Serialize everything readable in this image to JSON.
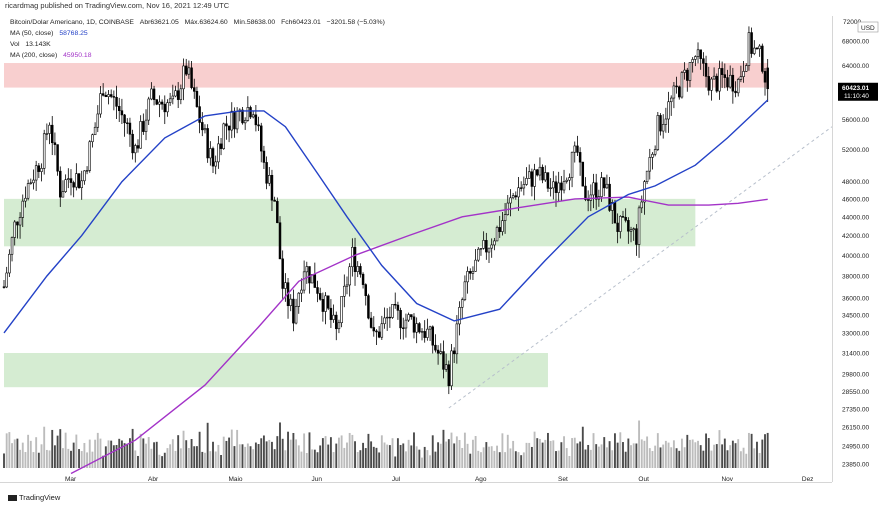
{
  "header": {
    "published": "ricardmag published on TradingView.com, Nov 16, 2021 12:49 UTC"
  },
  "ohlc": {
    "symbol": "Bitcoin/Dolar Americano, 1D, COINBASE",
    "open_label": "Abr",
    "open": "63621.05",
    "high_label": "Máx.",
    "high": "63624.60",
    "low_label": "Mín.",
    "low": "58638.00",
    "close_label": "Fch",
    "close": "60423.01",
    "change": "−3201.58 (−5.03%)"
  },
  "indicators": [
    {
      "label": "MA (50, close)",
      "value": "58768.25",
      "color": "#2442c7"
    },
    {
      "label": "Vol",
      "value": "13.143K",
      "color": "#222222"
    },
    {
      "label": "MA (200, close)",
      "value": "45950.18",
      "color": "#a333c8"
    }
  ],
  "brand": "TradingView",
  "chart_data": {
    "type": "candlestick",
    "currency": "USD",
    "yscale": "log",
    "ylim": [
      23500,
      72000
    ],
    "price_ticks": [
      "68000.00",
      "64000.00",
      "60000.00",
      "56000.00",
      "52000.00",
      "48000.00",
      "46000.00",
      "44000.00",
      "42000.00",
      "40000.00",
      "38000.00",
      "36000.00",
      "34500.00",
      "33000.00",
      "31400.00",
      "29800.00",
      "28550.00",
      "27350.00",
      "26150.00",
      "24950.00",
      "23850.00"
    ],
    "top_tick_partial": "72000",
    "months": [
      {
        "label": "Mar",
        "date": "2021-03-01"
      },
      {
        "label": "Abr",
        "date": "2021-04-01"
      },
      {
        "label": "Maio",
        "date": "2021-05-01"
      },
      {
        "label": "Jun",
        "date": "2021-06-01"
      },
      {
        "label": "Jul",
        "date": "2021-07-01"
      },
      {
        "label": "Ago",
        "date": "2021-08-01"
      },
      {
        "label": "Set",
        "date": "2021-09-01"
      },
      {
        "label": "Out",
        "date": "2021-10-01"
      },
      {
        "label": "Nov",
        "date": "2021-11-01"
      },
      {
        "label": "Dez",
        "date": "2021-12-01"
      }
    ],
    "x_range": [
      "2021-02-04",
      "2021-12-10"
    ],
    "last_bar_date": "2021-11-16",
    "close_trajectory": [
      {
        "date": "2021-02-04",
        "close": 37000
      },
      {
        "date": "2021-02-08",
        "close": 43000
      },
      {
        "date": "2021-02-12",
        "close": 47000
      },
      {
        "date": "2021-02-18",
        "close": 51000
      },
      {
        "date": "2021-02-21",
        "close": 56000
      },
      {
        "date": "2021-02-25",
        "close": 47000
      },
      {
        "date": "2021-03-01",
        "close": 49000
      },
      {
        "date": "2021-03-05",
        "close": 48000
      },
      {
        "date": "2021-03-10",
        "close": 55000
      },
      {
        "date": "2021-03-13",
        "close": 61000
      },
      {
        "date": "2021-03-18",
        "close": 58000
      },
      {
        "date": "2021-03-22",
        "close": 55000
      },
      {
        "date": "2021-03-25",
        "close": 52000
      },
      {
        "date": "2021-03-31",
        "close": 59000
      },
      {
        "date": "2021-04-08",
        "close": 58000
      },
      {
        "date": "2021-04-13",
        "close": 63500
      },
      {
        "date": "2021-04-18",
        "close": 56000
      },
      {
        "date": "2021-04-23",
        "close": 50000
      },
      {
        "date": "2021-04-27",
        "close": 55000
      },
      {
        "date": "2021-05-03",
        "close": 57000
      },
      {
        "date": "2021-05-08",
        "close": 58000
      },
      {
        "date": "2021-05-12",
        "close": 50000
      },
      {
        "date": "2021-05-16",
        "close": 46000
      },
      {
        "date": "2021-05-19",
        "close": 37000
      },
      {
        "date": "2021-05-23",
        "close": 34500
      },
      {
        "date": "2021-05-27",
        "close": 39000
      },
      {
        "date": "2021-06-01",
        "close": 37000
      },
      {
        "date": "2021-06-08",
        "close": 33000
      },
      {
        "date": "2021-06-14",
        "close": 40000
      },
      {
        "date": "2021-06-18",
        "close": 38000
      },
      {
        "date": "2021-06-22",
        "close": 32500
      },
      {
        "date": "2021-06-28",
        "close": 34500
      },
      {
        "date": "2021-07-06",
        "close": 34000
      },
      {
        "date": "2021-07-12",
        "close": 33000
      },
      {
        "date": "2021-07-20",
        "close": 29800
      },
      {
        "date": "2021-07-26",
        "close": 37000
      },
      {
        "date": "2021-08-01",
        "close": 40000
      },
      {
        "date": "2021-08-08",
        "close": 43000
      },
      {
        "date": "2021-08-14",
        "close": 47000
      },
      {
        "date": "2021-08-22",
        "close": 49000
      },
      {
        "date": "2021-08-28",
        "close": 47000
      },
      {
        "date": "2021-09-06",
        "close": 51500
      },
      {
        "date": "2021-09-08",
        "close": 46500
      },
      {
        "date": "2021-09-16",
        "close": 47500
      },
      {
        "date": "2021-09-21",
        "close": 43000
      },
      {
        "date": "2021-09-28",
        "close": 42000
      },
      {
        "date": "2021-10-01",
        "close": 48000
      },
      {
        "date": "2021-10-06",
        "close": 55000
      },
      {
        "date": "2021-10-15",
        "close": 61500
      },
      {
        "date": "2021-10-20",
        "close": 65500
      },
      {
        "date": "2021-10-26",
        "close": 61000
      },
      {
        "date": "2021-10-30",
        "close": 62000
      },
      {
        "date": "2021-11-05",
        "close": 61500
      },
      {
        "date": "2021-11-09",
        "close": 67500
      },
      {
        "date": "2021-11-14",
        "close": 64800
      },
      {
        "date": "2021-11-16",
        "close": 60423
      }
    ],
    "ma50": [
      {
        "date": "2021-02-04",
        "v": 33000
      },
      {
        "date": "2021-02-20",
        "v": 38000
      },
      {
        "date": "2021-03-05",
        "v": 42000
      },
      {
        "date": "2021-03-20",
        "v": 48000
      },
      {
        "date": "2021-04-05",
        "v": 53500
      },
      {
        "date": "2021-04-20",
        "v": 56500
      },
      {
        "date": "2021-05-03",
        "v": 57200
      },
      {
        "date": "2021-05-12",
        "v": 57200
      },
      {
        "date": "2021-05-20",
        "v": 55000
      },
      {
        "date": "2021-06-01",
        "v": 49000
      },
      {
        "date": "2021-06-12",
        "v": 44000
      },
      {
        "date": "2021-06-25",
        "v": 39000
      },
      {
        "date": "2021-07-08",
        "v": 35500
      },
      {
        "date": "2021-07-22",
        "v": 34000
      },
      {
        "date": "2021-08-08",
        "v": 35000
      },
      {
        "date": "2021-08-25",
        "v": 39500
      },
      {
        "date": "2021-09-10",
        "v": 44000
      },
      {
        "date": "2021-09-25",
        "v": 46500
      },
      {
        "date": "2021-10-05",
        "v": 47500
      },
      {
        "date": "2021-10-20",
        "v": 50000
      },
      {
        "date": "2021-11-01",
        "v": 53500
      },
      {
        "date": "2021-11-16",
        "v": 58768
      }
    ],
    "ma200": [
      {
        "date": "2021-03-01",
        "v": 23300
      },
      {
        "date": "2021-03-25",
        "v": 25300
      },
      {
        "date": "2021-04-20",
        "v": 29000
      },
      {
        "date": "2021-05-10",
        "v": 33500
      },
      {
        "date": "2021-05-25",
        "v": 37500
      },
      {
        "date": "2021-06-15",
        "v": 40000
      },
      {
        "date": "2021-07-05",
        "v": 42000
      },
      {
        "date": "2021-07-25",
        "v": 44000
      },
      {
        "date": "2021-08-15",
        "v": 45000
      },
      {
        "date": "2021-09-05",
        "v": 46000
      },
      {
        "date": "2021-09-25",
        "v": 46200
      },
      {
        "date": "2021-10-10",
        "v": 45300
      },
      {
        "date": "2021-10-25",
        "v": 45300
      },
      {
        "date": "2021-11-05",
        "v": 45500
      },
      {
        "date": "2021-11-16",
        "v": 45950
      }
    ],
    "zones": [
      {
        "color": "#f8cfcf",
        "y": [
          60600,
          64400
        ],
        "from": "2021-02-04",
        "to": "2021-11-16"
      },
      {
        "color": "#d5ecd2",
        "y": [
          40900,
          46000
        ],
        "from": "2021-02-04",
        "to": "2021-10-20"
      },
      {
        "color": "#d5ecd2",
        "y": [
          28850,
          31400
        ],
        "from": "2021-02-04",
        "to": "2021-08-26"
      }
    ],
    "trendline": {
      "from": {
        "date": "2021-07-20",
        "v": 27400
      },
      "to": {
        "date": "2021-12-10",
        "v": 55000
      },
      "style": "dashed",
      "color": "#b8c0cc"
    },
    "last_price": {
      "value": "60423.01",
      "countdown": "11:10:40",
      "color": "#000000"
    },
    "volume_label": "Vol",
    "grid": false
  }
}
